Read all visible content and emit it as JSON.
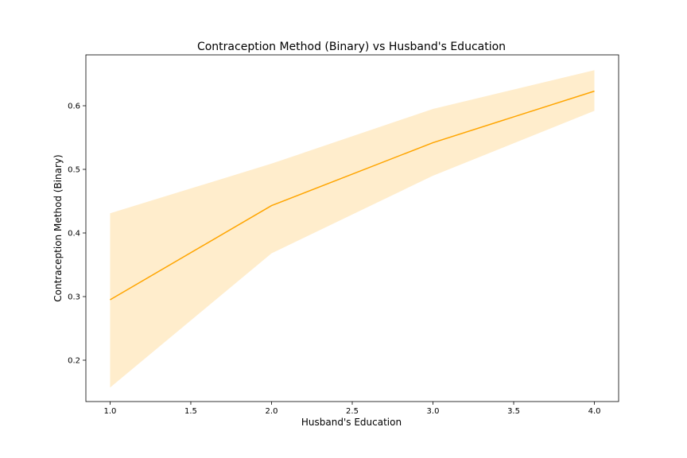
{
  "chart_data": {
    "type": "line",
    "title": "Contraception Method (Binary) vs Husband's Education",
    "xlabel": "Husband's Education",
    "ylabel": "Contraception Method (Binary)",
    "xlim": [
      0.85,
      4.15
    ],
    "ylim": [
      0.135,
      0.68
    ],
    "x_ticks": [
      1.0,
      1.5,
      2.0,
      2.5,
      3.0,
      3.5,
      4.0
    ],
    "x_tick_labels": [
      "1.0",
      "1.5",
      "2.0",
      "2.5",
      "3.0",
      "3.5",
      "4.0"
    ],
    "y_ticks": [
      0.2,
      0.3,
      0.4,
      0.5,
      0.6
    ],
    "y_tick_labels": [
      "0.2",
      "0.3",
      "0.4",
      "0.5",
      "0.6"
    ],
    "grid": false,
    "series": [
      {
        "x": [
          1,
          2,
          3,
          4
        ],
        "y": [
          0.295,
          0.443,
          0.542,
          0.623
        ],
        "ci_lower": [
          0.157,
          0.368,
          0.49,
          0.592
        ],
        "ci_upper": [
          0.431,
          0.509,
          0.595,
          0.656
        ],
        "color": "#ffa500",
        "band_color": "#ffa500"
      }
    ]
  }
}
